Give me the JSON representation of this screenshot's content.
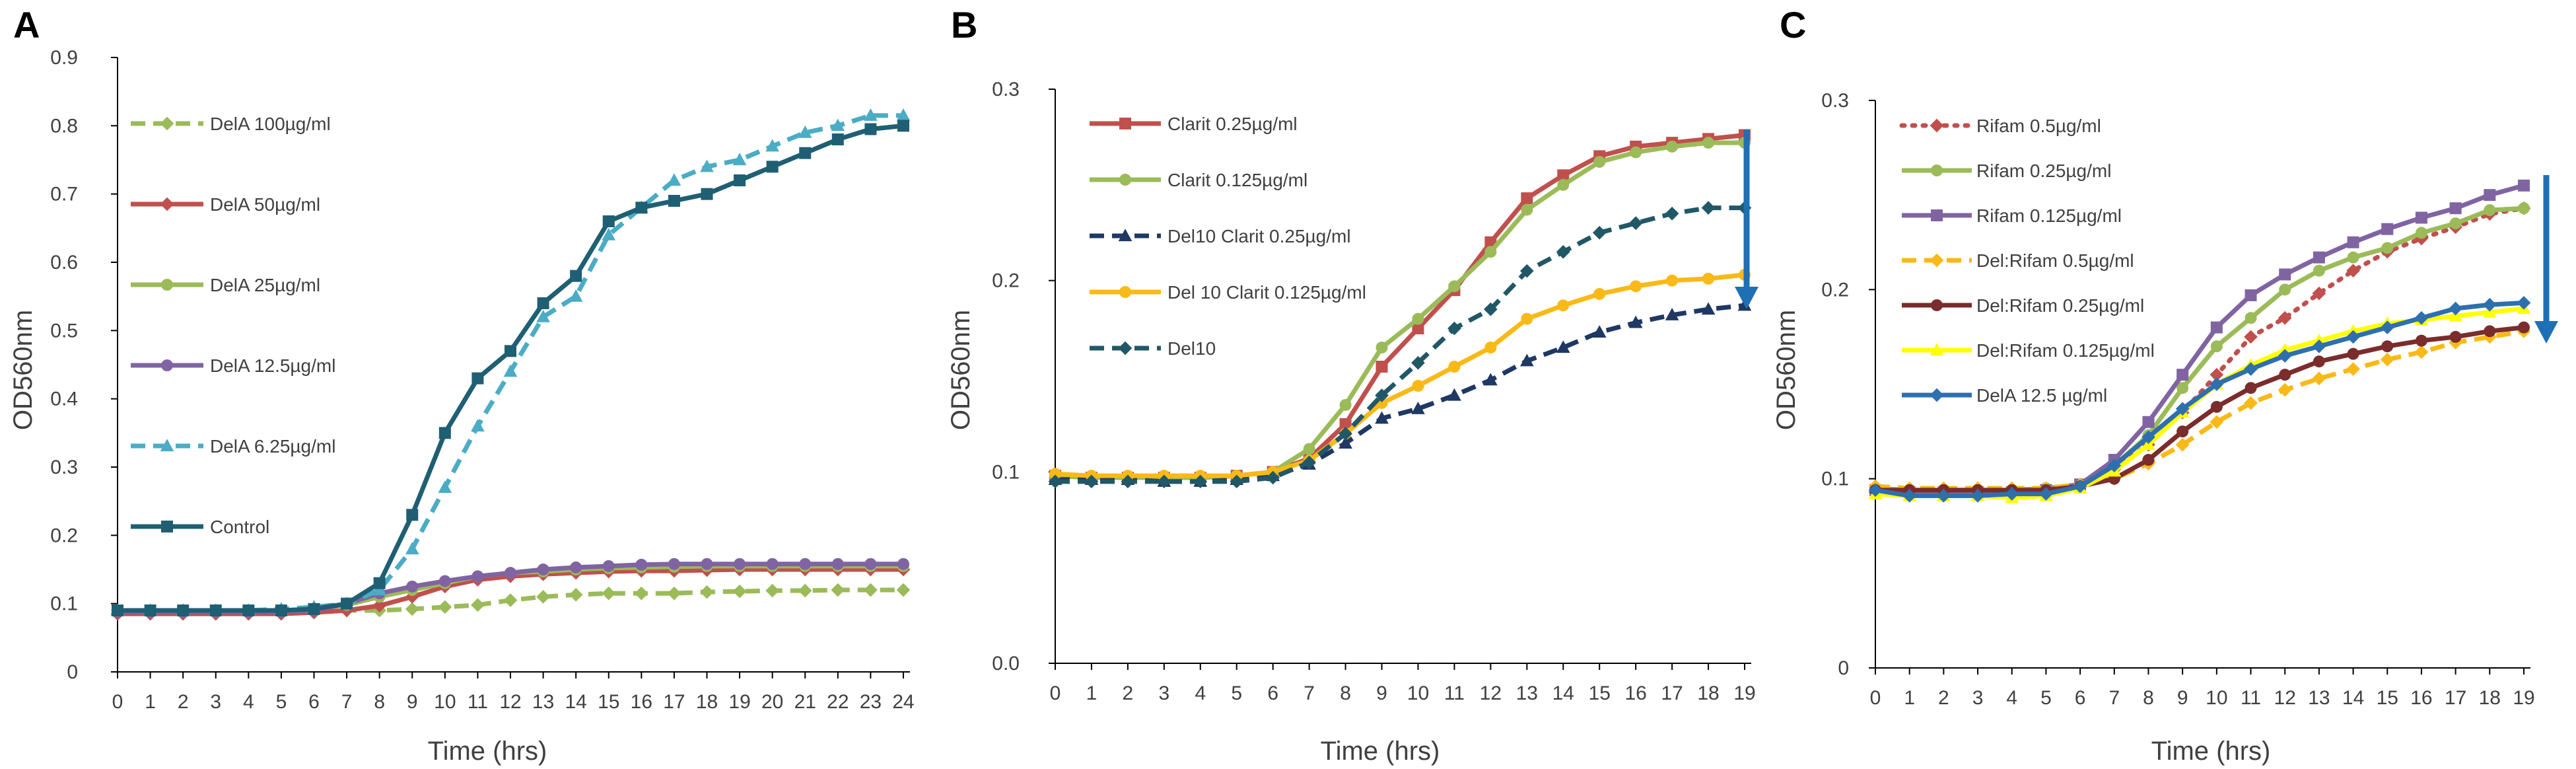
{
  "figure_title": "",
  "colors": {
    "axis": "#000000",
    "text": "#404040",
    "arrow": "#1f6fb5"
  },
  "chart_data": [
    {
      "panel": "A",
      "type": "line",
      "title": "",
      "xlabel": "Time (hrs)",
      "ylabel": "OD560nm",
      "xlim": [
        0,
        24
      ],
      "ylim": [
        0,
        0.9
      ],
      "x_ticks": [
        0,
        1,
        2,
        3,
        4,
        5,
        6,
        7,
        8,
        9,
        10,
        11,
        12,
        13,
        14,
        15,
        16,
        17,
        18,
        19,
        20,
        21,
        22,
        23,
        24
      ],
      "y_ticks": [
        0,
        0.1,
        0.2,
        0.3,
        0.4,
        0.5,
        0.6,
        0.7,
        0.8,
        0.9
      ],
      "y_tick_labels": [
        "0",
        "0.1",
        "0.2",
        "0.3",
        "0.4",
        "0.5",
        "0.6",
        "0.7",
        "0.8",
        "0.9"
      ],
      "legend_position": "left",
      "has_arrow": false,
      "series": [
        {
          "name": "DelA 100µg/ml",
          "color": "#9bbb59",
          "dash": "dash",
          "marker": "diamond",
          "legend_marker": "diamond",
          "values": [
            0.09,
            0.09,
            0.09,
            0.09,
            0.09,
            0.09,
            0.09,
            0.09,
            0.09,
            0.092,
            0.095,
            0.098,
            0.105,
            0.11,
            0.113,
            0.115,
            0.115,
            0.115,
            0.117,
            0.118,
            0.119,
            0.119,
            0.12,
            0.12,
            0.12
          ]
        },
        {
          "name": "DelA 50µg/ml",
          "color": "#c0504d",
          "dash": "solid",
          "marker": "diamond",
          "legend_marker": "diamond",
          "values": [
            0.085,
            0.085,
            0.085,
            0.085,
            0.085,
            0.085,
            0.087,
            0.09,
            0.097,
            0.11,
            0.125,
            0.135,
            0.14,
            0.143,
            0.145,
            0.147,
            0.148,
            0.148,
            0.149,
            0.15,
            0.15,
            0.15,
            0.15,
            0.15,
            0.15
          ]
        },
        {
          "name": "DelA 25µg/ml",
          "color": "#9bbb59",
          "dash": "solid",
          "marker": "circle",
          "legend_marker": "circle",
          "values": [
            0.09,
            0.09,
            0.09,
            0.09,
            0.09,
            0.09,
            0.092,
            0.098,
            0.11,
            0.12,
            0.13,
            0.14,
            0.145,
            0.147,
            0.15,
            0.152,
            0.153,
            0.154,
            0.155,
            0.155,
            0.155,
            0.155,
            0.155,
            0.155,
            0.155
          ]
        },
        {
          "name": "DelA 12.5µg/ml",
          "color": "#8064a2",
          "dash": "solid",
          "marker": "circle",
          "legend_marker": "circle",
          "values": [
            0.088,
            0.088,
            0.088,
            0.088,
            0.088,
            0.088,
            0.09,
            0.1,
            0.115,
            0.125,
            0.133,
            0.14,
            0.145,
            0.15,
            0.153,
            0.155,
            0.157,
            0.158,
            0.158,
            0.158,
            0.158,
            0.158,
            0.158,
            0.158,
            0.158
          ]
        },
        {
          "name": "DelA 6.25µg/ml",
          "color": "#4bacc6",
          "dash": "dash",
          "marker": "triangle",
          "legend_marker": "triangle",
          "values": [
            0.09,
            0.09,
            0.09,
            0.09,
            0.09,
            0.092,
            0.095,
            0.1,
            0.12,
            0.18,
            0.27,
            0.36,
            0.44,
            0.52,
            0.55,
            0.64,
            0.68,
            0.72,
            0.74,
            0.75,
            0.77,
            0.79,
            0.8,
            0.815,
            0.815
          ]
        },
        {
          "name": "Control",
          "color": "#1f5f73",
          "dash": "solid",
          "marker": "square",
          "legend_marker": "square",
          "values": [
            0.09,
            0.09,
            0.09,
            0.09,
            0.09,
            0.09,
            0.092,
            0.1,
            0.13,
            0.23,
            0.35,
            0.43,
            0.47,
            0.54,
            0.58,
            0.66,
            0.68,
            0.69,
            0.7,
            0.72,
            0.74,
            0.76,
            0.78,
            0.795,
            0.8
          ]
        }
      ]
    },
    {
      "panel": "B",
      "type": "line",
      "title": "",
      "xlabel": "Time (hrs)",
      "ylabel": "OD560nm",
      "xlim": [
        0,
        19
      ],
      "ylim": [
        0,
        0.3
      ],
      "x_ticks": [
        0,
        1,
        2,
        3,
        4,
        5,
        6,
        7,
        8,
        9,
        10,
        11,
        12,
        13,
        14,
        15,
        16,
        17,
        18,
        19
      ],
      "y_ticks": [
        0,
        0.1,
        0.2,
        0.3
      ],
      "y_tick_labels": [
        "0.0",
        "0.1",
        "0.2",
        "0.3"
      ],
      "legend_position": "top-left",
      "has_arrow": true,
      "series": [
        {
          "name": "Clarit 0.25µg/ml",
          "color": "#c0504d",
          "dash": "solid",
          "marker": "square",
          "legend_marker": "square",
          "values": [
            0.098,
            0.097,
            0.097,
            0.097,
            0.097,
            0.098,
            0.1,
            0.107,
            0.125,
            0.155,
            0.175,
            0.195,
            0.22,
            0.243,
            0.255,
            0.265,
            0.27,
            0.272,
            0.274,
            0.276
          ]
        },
        {
          "name": "Clarit 0.125µg/ml",
          "color": "#9bbb59",
          "dash": "solid",
          "marker": "circle",
          "legend_marker": "circle",
          "values": [
            0.098,
            0.097,
            0.097,
            0.097,
            0.097,
            0.098,
            0.1,
            0.112,
            0.135,
            0.165,
            0.18,
            0.197,
            0.215,
            0.237,
            0.25,
            0.262,
            0.267,
            0.27,
            0.272,
            0.272
          ]
        },
        {
          "name": "Del10 Clarit 0.25µg/ml",
          "color": "#1f3864",
          "dash": "dash",
          "marker": "triangle",
          "legend_marker": "triangle",
          "values": [
            0.096,
            0.096,
            0.096,
            0.095,
            0.095,
            0.096,
            0.098,
            0.104,
            0.115,
            0.128,
            0.133,
            0.14,
            0.148,
            0.158,
            0.165,
            0.173,
            0.178,
            0.182,
            0.185,
            0.187
          ]
        },
        {
          "name": "Del 10 Clarit 0.125µg/ml",
          "color": "#f9b916",
          "dash": "solid",
          "marker": "circle",
          "legend_marker": "circle",
          "values": [
            0.099,
            0.098,
            0.098,
            0.098,
            0.098,
            0.098,
            0.1,
            0.106,
            0.12,
            0.136,
            0.145,
            0.155,
            0.165,
            0.18,
            0.187,
            0.193,
            0.197,
            0.2,
            0.201,
            0.203
          ]
        },
        {
          "name": "Del10",
          "color": "#215867",
          "dash": "dash",
          "marker": "diamond",
          "legend_marker": "diamond",
          "values": [
            0.095,
            0.095,
            0.095,
            0.095,
            0.095,
            0.095,
            0.097,
            0.105,
            0.12,
            0.14,
            0.157,
            0.175,
            0.185,
            0.205,
            0.215,
            0.225,
            0.23,
            0.235,
            0.238,
            0.238
          ]
        }
      ]
    },
    {
      "panel": "C",
      "type": "line",
      "title": "",
      "xlabel": "Time (hrs)",
      "ylabel": "OD560nm",
      "xlim": [
        0,
        19
      ],
      "ylim": [
        0,
        0.3
      ],
      "x_ticks": [
        0,
        1,
        2,
        3,
        4,
        5,
        6,
        7,
        8,
        9,
        10,
        11,
        12,
        13,
        14,
        15,
        16,
        17,
        18,
        19
      ],
      "y_ticks": [
        0,
        0.1,
        0.2,
        0.3
      ],
      "y_tick_labels": [
        "0",
        "0.1",
        "0.2",
        "0.3"
      ],
      "legend_position": "top-left",
      "has_arrow": true,
      "series": [
        {
          "name": "Rifam 0.5µg/ml",
          "color": "#c0504d",
          "dash": "dot",
          "marker": "diamond",
          "legend_marker": "diamond",
          "values": [
            0.093,
            0.093,
            0.093,
            0.093,
            0.093,
            0.094,
            0.096,
            0.105,
            0.118,
            0.135,
            0.155,
            0.175,
            0.185,
            0.198,
            0.21,
            0.22,
            0.227,
            0.233,
            0.24,
            0.243
          ]
        },
        {
          "name": "Rifam 0.25µg/ml",
          "color": "#9bbb59",
          "dash": "solid",
          "marker": "circle",
          "legend_marker": "circle",
          "values": [
            0.095,
            0.094,
            0.094,
            0.094,
            0.094,
            0.095,
            0.097,
            0.107,
            0.123,
            0.148,
            0.17,
            0.185,
            0.2,
            0.21,
            0.217,
            0.222,
            0.23,
            0.235,
            0.242,
            0.243
          ]
        },
        {
          "name": "Rifam 0.125µg/ml",
          "color": "#8064a2",
          "dash": "solid",
          "marker": "square",
          "legend_marker": "square",
          "values": [
            0.094,
            0.093,
            0.093,
            0.093,
            0.093,
            0.094,
            0.097,
            0.11,
            0.13,
            0.155,
            0.18,
            0.197,
            0.208,
            0.217,
            0.225,
            0.232,
            0.238,
            0.243,
            0.25,
            0.255
          ]
        },
        {
          "name": "Del:Rifam 0.5µg/ml",
          "color": "#f9b916",
          "dash": "dash",
          "marker": "diamond",
          "legend_marker": "diamond",
          "values": [
            0.096,
            0.095,
            0.095,
            0.095,
            0.095,
            0.095,
            0.097,
            0.1,
            0.108,
            0.118,
            0.13,
            0.14,
            0.147,
            0.153,
            0.158,
            0.163,
            0.167,
            0.172,
            0.175,
            0.178
          ]
        },
        {
          "name": "Del:Rifam 0.25µg/ml",
          "color": "#7b2c2c",
          "dash": "solid",
          "marker": "circle",
          "legend_marker": "circle",
          "values": [
            0.094,
            0.094,
            0.094,
            0.094,
            0.094,
            0.094,
            0.096,
            0.1,
            0.11,
            0.125,
            0.138,
            0.148,
            0.155,
            0.162,
            0.166,
            0.17,
            0.173,
            0.175,
            0.178,
            0.18
          ]
        },
        {
          "name": "Del:Rifam 0.125µg/ml",
          "color": "#ffff00",
          "dash": "solid",
          "marker": "triangle",
          "legend_marker": "triangle",
          "values": [
            0.092,
            0.091,
            0.091,
            0.091,
            0.09,
            0.091,
            0.095,
            0.104,
            0.118,
            0.135,
            0.15,
            0.16,
            0.168,
            0.173,
            0.178,
            0.182,
            0.184,
            0.186,
            0.188,
            0.19
          ]
        },
        {
          "name": "DelA 12.5 µg/ml",
          "color": "#2e6fae",
          "dash": "solid",
          "marker": "diamond",
          "legend_marker": "diamond",
          "values": [
            0.094,
            0.091,
            0.091,
            0.091,
            0.092,
            0.092,
            0.096,
            0.107,
            0.122,
            0.137,
            0.15,
            0.158,
            0.165,
            0.17,
            0.175,
            0.18,
            0.185,
            0.19,
            0.192,
            0.193
          ]
        }
      ]
    }
  ]
}
